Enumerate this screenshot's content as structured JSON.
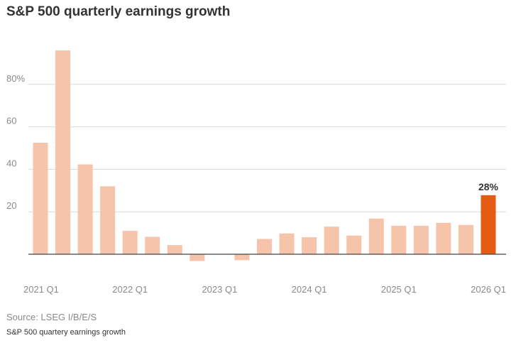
{
  "chart_data": {
    "type": "bar",
    "title": "S&P 500 quarterly earnings growth",
    "xlabel": "",
    "ylabel": "",
    "categories": [
      "2021 Q1",
      "2021 Q2",
      "2021 Q3",
      "2021 Q4",
      "2022 Q1",
      "2022 Q2",
      "2022 Q3",
      "2022 Q4",
      "2023 Q1",
      "2023 Q2",
      "2023 Q3",
      "2023 Q4",
      "2024 Q1",
      "2024 Q2",
      "2024 Q3",
      "2024 Q4",
      "2025 Q1",
      "2025 Q2",
      "2025 Q3",
      "2025 Q4",
      "2026 Q1"
    ],
    "values": [
      52.5,
      96,
      42.3,
      32,
      11,
      8.2,
      4.3,
      -3.2,
      0,
      -2.8,
      7.2,
      9.8,
      8,
      13,
      8.8,
      16.8,
      13.4,
      13.4,
      14.8,
      13.8,
      27.8
    ],
    "ylim": [
      -5,
      100
    ],
    "yticks": [
      {
        "value": 20,
        "label": "20"
      },
      {
        "value": 40,
        "label": "40"
      },
      {
        "value": 60,
        "label": "60"
      },
      {
        "value": 80,
        "label": "80%"
      }
    ],
    "xtick_labels": [
      "2021 Q1",
      "2022 Q1",
      "2023 Q1",
      "2024 Q1",
      "2025 Q1",
      "2026 Q1"
    ],
    "highlight_index": 20,
    "highlight_label": "28%",
    "grid": true,
    "colors": {
      "bar": "#f6c4aa",
      "highlight": "#e55b13",
      "grid": "#d9d9d9",
      "axis": "#444444"
    }
  },
  "footer": {
    "source": "Source: LSEG I/B/E/S",
    "caption": "S&P 500 quartery earnings growth"
  }
}
